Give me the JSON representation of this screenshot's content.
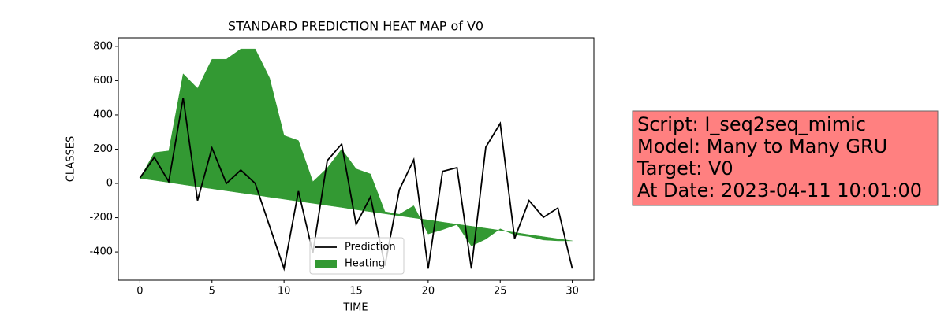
{
  "chart_data": {
    "type": "line",
    "title": "STANDARD PREDICTION HEAT MAP of V0",
    "x_label": "TIME",
    "y_label": "CLASSES",
    "x": [
      0,
      1,
      2,
      3,
      4,
      5,
      6,
      7,
      8,
      9,
      10,
      11,
      12,
      13,
      14,
      15,
      16,
      17,
      18,
      19,
      20,
      21,
      22,
      23,
      24,
      25,
      26,
      27,
      28,
      29,
      30
    ],
    "series": [
      {
        "name": "Prediction",
        "color": "#000000",
        "values": [
          32,
          152,
          10,
          500,
          -100,
          207,
          0,
          78,
          0,
          -250,
          -497,
          -45,
          -405,
          133,
          230,
          -240,
          -78,
          -480,
          -37,
          138,
          -497,
          70,
          92,
          -497,
          212,
          350,
          -322,
          -100,
          -198,
          -143,
          -497
        ]
      },
      {
        "name": "Heating",
        "color": "#339933",
        "values": [
          30,
          180,
          190,
          640,
          555,
          725,
          725,
          785,
          785,
          615,
          280,
          250,
          10,
          90,
          200,
          85,
          55,
          -165,
          -180,
          -130,
          -295,
          -270,
          -240,
          -365,
          -325,
          -265,
          -300,
          -310,
          -330,
          -335,
          -335
        ],
        "lower": [
          30,
          18,
          6,
          -7,
          -19,
          -31,
          -43,
          -55,
          -67,
          -80,
          -92,
          -104,
          -116,
          -128,
          -140,
          -153,
          -165,
          -177,
          -189,
          -201,
          -213,
          -226,
          -238,
          -250,
          -262,
          -274,
          -286,
          -299,
          -311,
          -323,
          -335
        ]
      }
    ],
    "xlim": [
      -1.5,
      31.5
    ],
    "ylim": [
      -565,
      850
    ],
    "xticks": [
      0,
      5,
      10,
      15,
      20,
      25,
      30
    ],
    "yticks": [
      -400,
      -200,
      0,
      200,
      400,
      600,
      800
    ],
    "legend": "lower center",
    "annotation": {
      "lines": [
        "Script: I_seq2seq_mimic",
        "Model: Many to Many GRU",
        "Target: V0",
        "At Date: 2023-04-11 10:01:00"
      ],
      "color": "#ff8080"
    }
  }
}
